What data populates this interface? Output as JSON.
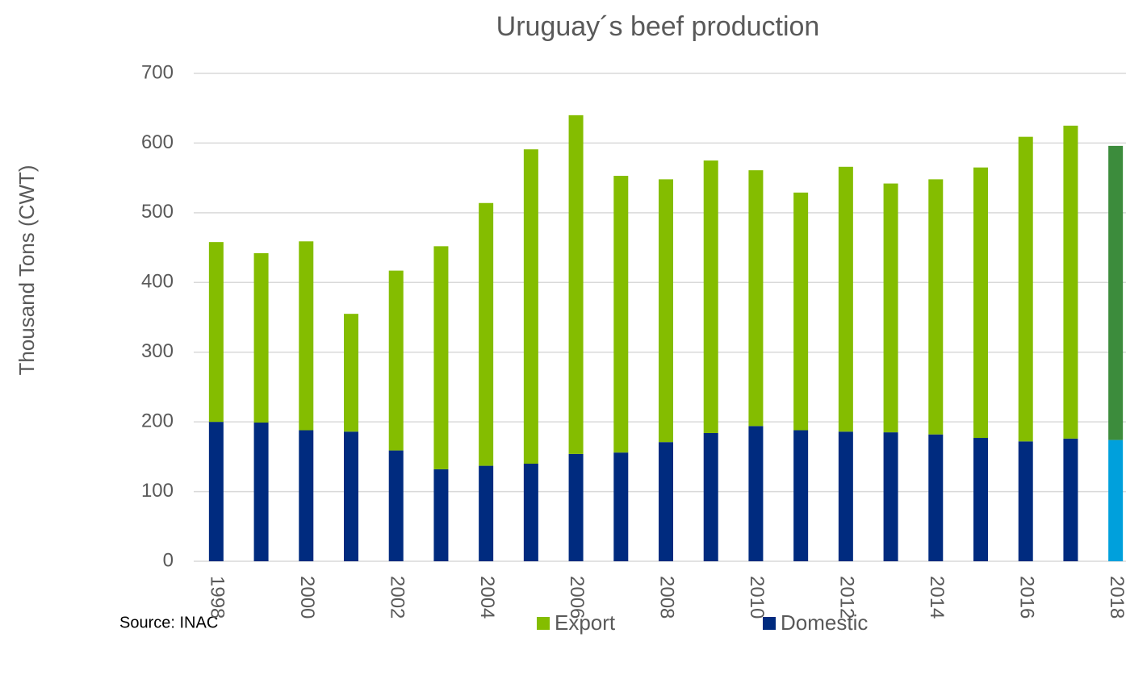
{
  "chart_data": {
    "type": "stacked_bar",
    "title": "Uruguay´s beef production",
    "y_label": "Thousand  Tons (CWT)",
    "source": "Source: INAC",
    "categories": [
      "1998",
      null,
      "2000",
      null,
      "2002",
      null,
      "2004",
      null,
      "2006",
      null,
      "2008",
      null,
      "2010",
      null,
      "2012",
      null,
      "2014",
      null,
      "2016",
      null,
      "2018"
    ],
    "series": [
      {
        "name": "Domestic",
        "color": "#002b7f",
        "colors": [
          "#002b7f",
          "#002b7f",
          "#002b7f",
          "#002b7f",
          "#002b7f",
          "#002b7f",
          "#002b7f",
          "#002b7f",
          "#002b7f",
          "#002b7f",
          "#002b7f",
          "#002b7f",
          "#002b7f",
          "#002b7f",
          "#002b7f",
          "#002b7f",
          "#002b7f",
          "#002b7f",
          "#002b7f",
          "#002b7f",
          "#00a0dc"
        ],
        "values": [
          200,
          199,
          188,
          186,
          159,
          132,
          137,
          140,
          154,
          156,
          171,
          184,
          194,
          188,
          186,
          185,
          182,
          177,
          172,
          176,
          174
        ]
      },
      {
        "name": "Export",
        "color": "#84bd00",
        "colors": [
          "#84bd00",
          "#84bd00",
          "#84bd00",
          "#84bd00",
          "#84bd00",
          "#84bd00",
          "#84bd00",
          "#84bd00",
          "#84bd00",
          "#84bd00",
          "#84bd00",
          "#84bd00",
          "#84bd00",
          "#84bd00",
          "#84bd00",
          "#84bd00",
          "#84bd00",
          "#84bd00",
          "#84bd00",
          "#84bd00",
          "#3c8c3c"
        ],
        "values": [
          258,
          243,
          271,
          169,
          258,
          320,
          377,
          451,
          486,
          397,
          377,
          391,
          367,
          341,
          380,
          357,
          366,
          388,
          437,
          449,
          422
        ]
      }
    ],
    "legend_order": [
      1,
      0
    ],
    "ylim": [
      0,
      700
    ],
    "yticks": [
      0,
      100,
      200,
      300,
      400,
      500,
      600,
      700
    ],
    "grid": true
  }
}
